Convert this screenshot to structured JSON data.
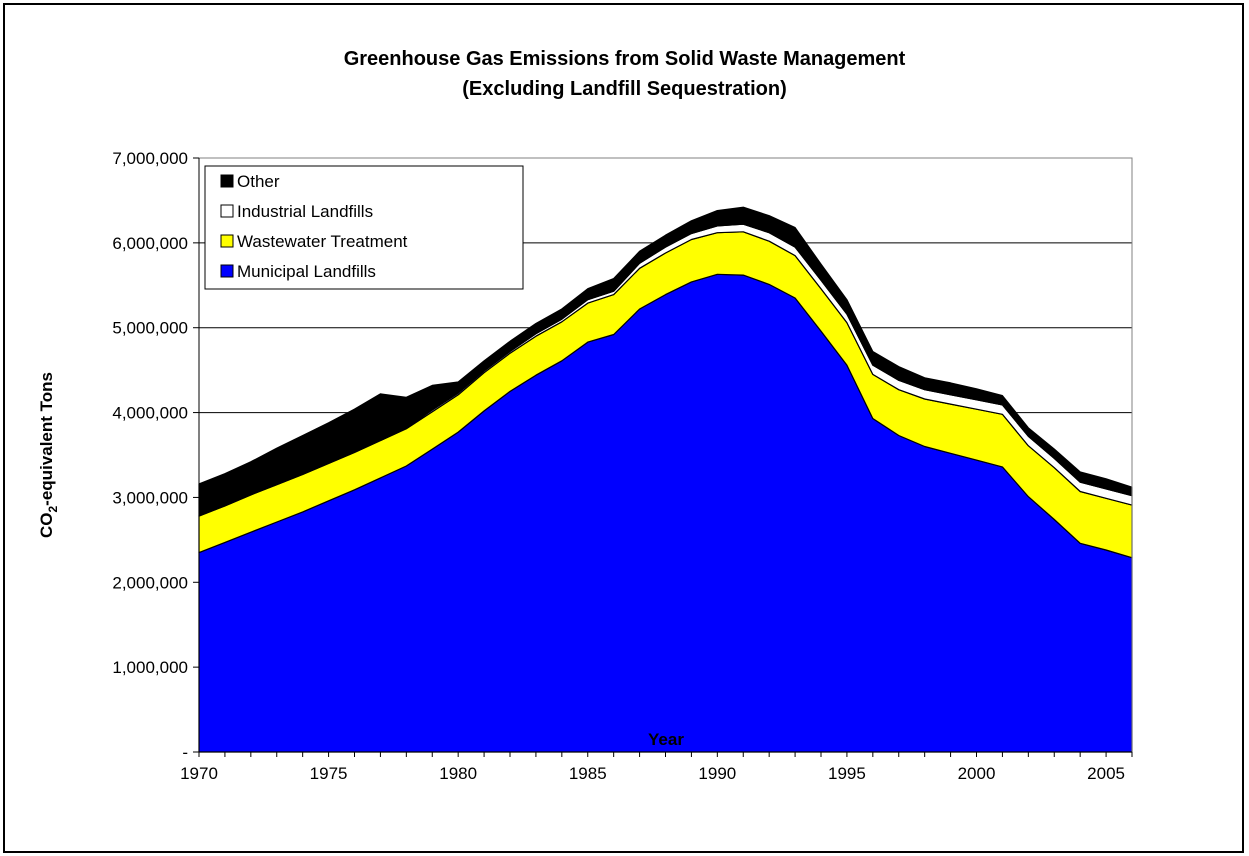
{
  "chart_data": {
    "type": "area",
    "stacked": true,
    "title_line1": "Greenhouse Gas Emissions from Solid Waste Management",
    "title_line2": "(Excluding Landfill Sequestration)",
    "xlabel": "Year",
    "ylabel_main": "CO",
    "ylabel_sub": "2",
    "ylabel_rest": "-equivalent Tons",
    "xlim": [
      1970,
      2006
    ],
    "ylim": [
      0,
      7000000
    ],
    "y_ticks": [
      {
        "value": 0,
        "label": "-"
      },
      {
        "value": 1000000,
        "label": "1,000,000"
      },
      {
        "value": 2000000,
        "label": "2,000,000"
      },
      {
        "value": 3000000,
        "label": "3,000,000"
      },
      {
        "value": 4000000,
        "label": "4,000,000"
      },
      {
        "value": 5000000,
        "label": "5,000,000"
      },
      {
        "value": 6000000,
        "label": "6,000,000"
      },
      {
        "value": 7000000,
        "label": "7,000,000"
      }
    ],
    "x_ticks": [
      {
        "value": 1970,
        "label": "1970"
      },
      {
        "value": 1975,
        "label": "1975"
      },
      {
        "value": 1980,
        "label": "1980"
      },
      {
        "value": 1985,
        "label": "1985"
      },
      {
        "value": 1990,
        "label": "1990"
      },
      {
        "value": 1995,
        "label": "1995"
      },
      {
        "value": 2000,
        "label": "2000"
      },
      {
        "value": 2005,
        "label": "2005"
      }
    ],
    "grid": "horizontal major",
    "legend_placement": "top-left",
    "x": [
      1970,
      1971,
      1972,
      1973,
      1974,
      1975,
      1976,
      1977,
      1978,
      1979,
      1980,
      1981,
      1982,
      1983,
      1984,
      1985,
      1986,
      1987,
      1988,
      1989,
      1990,
      1991,
      1992,
      1993,
      1994,
      1995,
      1996,
      1997,
      1998,
      1999,
      2000,
      2001,
      2002,
      2003,
      2004,
      2005,
      2006
    ],
    "series": [
      {
        "name": "Municipal Landfills",
        "color": "#0000FF",
        "values": [
          2350000,
          2470000,
          2590000,
          2710000,
          2830000,
          2960000,
          3090000,
          3230000,
          3370000,
          3570000,
          3770000,
          4020000,
          4250000,
          4440000,
          4610000,
          4830000,
          4920000,
          5220000,
          5390000,
          5540000,
          5630000,
          5620000,
          5510000,
          5350000,
          4960000,
          4560000,
          3930000,
          3730000,
          3600000,
          3520000,
          3440000,
          3360000,
          3010000,
          2740000,
          2460000,
          2380000,
          2290000
        ]
      },
      {
        "name": "Wastewater Treatment",
        "color": "#FFFF00",
        "values": [
          430000,
          430000,
          440000,
          440000,
          440000,
          440000,
          440000,
          440000,
          440000,
          440000,
          440000,
          450000,
          450000,
          460000,
          460000,
          460000,
          470000,
          480000,
          490000,
          500000,
          490000,
          510000,
          510000,
          500000,
          500000,
          500000,
          520000,
          540000,
          560000,
          580000,
          600000,
          620000,
          600000,
          610000,
          610000,
          610000,
          620000
        ]
      },
      {
        "name": "Industrial Landfills",
        "color": "#FFFFFF",
        "values": [
          10000,
          10000,
          10000,
          10000,
          10000,
          10000,
          10000,
          10000,
          10000,
          20000,
          20000,
          20000,
          20000,
          30000,
          30000,
          40000,
          40000,
          60000,
          70000,
          70000,
          80000,
          90000,
          100000,
          100000,
          100000,
          100000,
          110000,
          110000,
          110000,
          110000,
          110000,
          110000,
          110000,
          110000,
          110000,
          110000,
          110000
        ]
      },
      {
        "name": "Other",
        "color": "#000000",
        "values": [
          370000,
          370000,
          380000,
          420000,
          450000,
          470000,
          500000,
          540000,
          360000,
          290000,
          130000,
          120000,
          120000,
          120000,
          120000,
          130000,
          150000,
          140000,
          140000,
          150000,
          180000,
          200000,
          200000,
          230000,
          190000,
          170000,
          160000,
          160000,
          140000,
          140000,
          130000,
          110000,
          100000,
          110000,
          120000,
          120000,
          100000
        ]
      }
    ]
  }
}
